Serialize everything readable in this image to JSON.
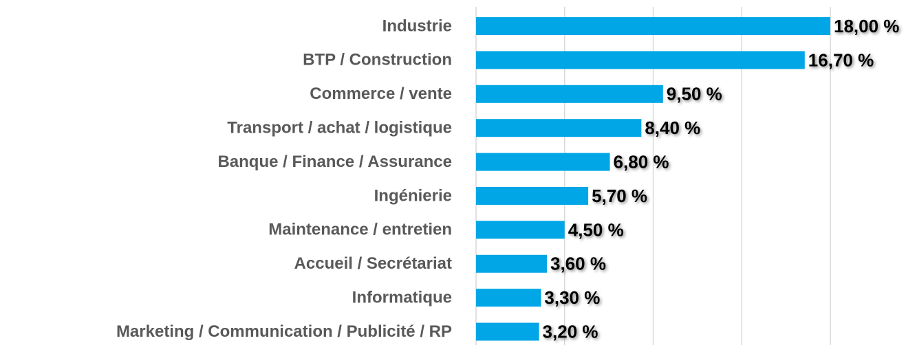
{
  "chart_data": {
    "type": "barh",
    "categories": [
      "Industrie",
      "BTP / Construction",
      "Commerce / vente",
      "Transport / achat / logistique",
      "Banque / Finance / Assurance",
      "Ingénierie",
      "Maintenance / entretien",
      "Accueil / Secrétariat",
      "Informatique",
      "Marketing / Communication / Publicité / RP"
    ],
    "values": [
      18.0,
      16.7,
      9.5,
      8.4,
      6.8,
      5.7,
      4.5,
      3.6,
      3.3,
      3.2
    ],
    "value_labels": [
      "18,00 %",
      "16,70 %",
      "9,50 %",
      "8,40 %",
      "6,80 %",
      "5,70 %",
      "4,50 %",
      "3,60 %",
      "3,30 %",
      "3,20 %"
    ],
    "color": "#00a6e6",
    "xlim": [
      0,
      18
    ],
    "xticks": [
      0,
      4.5,
      9,
      13.5,
      18
    ],
    "grid": true
  }
}
